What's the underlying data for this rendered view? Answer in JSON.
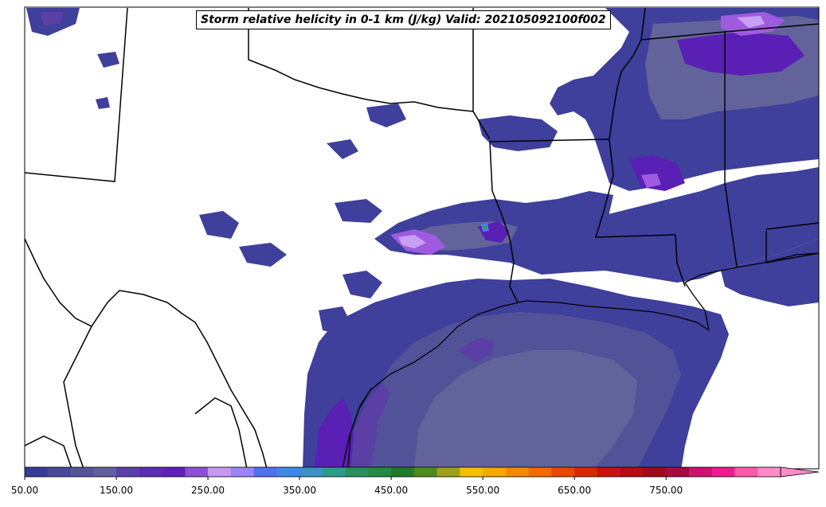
{
  "map": {
    "title": "Storm relative helicity in 0-1 km (J/kg) Valid: 202105092100f002",
    "field_colors": {
      "c1": "#3f3f9c",
      "c2": "#525298",
      "c3": "#63639c",
      "c4": "#5b3fa4",
      "c5": "#5a1fb4",
      "c6": "#9f5be0",
      "c7": "#c7a0f5",
      "c8": "#4f7ff0",
      "c9": "#2aa06a"
    },
    "ocean_fill": "#6a6aa8"
  },
  "colorbar": {
    "ticks": [
      "50.00",
      "150.00",
      "250.00",
      "350.00",
      "450.00",
      "550.00",
      "650.00",
      "750.00"
    ],
    "extend": "max",
    "colors": [
      "#3a3a98",
      "#48489a",
      "#555599",
      "#6060a0",
      "#5b3fa8",
      "#5a2db5",
      "#5f1fb8",
      "#8e4fd8",
      "#c698f2",
      "#9a84f2",
      "#4f70f0",
      "#3f88e8",
      "#3a90c8",
      "#2f9a8a",
      "#2a8f5a",
      "#248a40",
      "#1f7a2a",
      "#4f8a1f",
      "#9fa01a",
      "#f2c000",
      "#f5a800",
      "#f58a00",
      "#f56a00",
      "#e84800",
      "#d82800",
      "#cc1010",
      "#b80a10",
      "#a00a18",
      "#a80a40",
      "#d01070",
      "#f01a90",
      "#f85aa8",
      "#ff8ac8"
    ]
  }
}
